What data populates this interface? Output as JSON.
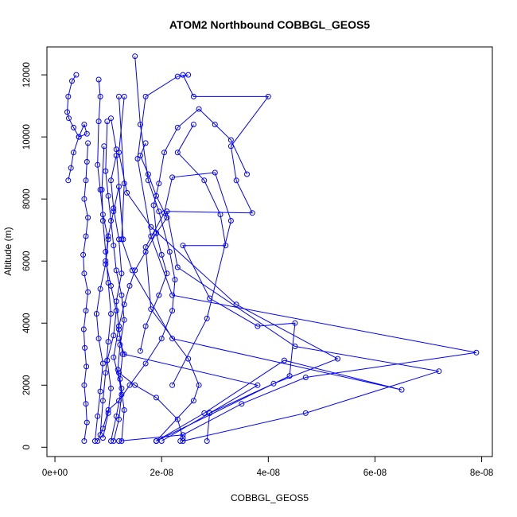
{
  "chart_data": {
    "type": "scatter",
    "title": "ATOM2 Northbound COBBGL_GEOS5",
    "xlabel": "COBBGL_GEOS5",
    "ylabel": "Altitude (m)",
    "xlim": [
      -1.5e-09,
      8.2e-08
    ],
    "ylim": [
      -300,
      12900
    ],
    "x_ticks": [
      0,
      2e-08,
      4e-08,
      6e-08,
      8e-08
    ],
    "x_tick_labels": [
      "0e+00",
      "2e-08",
      "4e-08",
      "6e-08",
      "8e-08"
    ],
    "y_ticks": [
      0,
      2000,
      4000,
      6000,
      8000,
      10000,
      12000
    ],
    "y_tick_labels": [
      "0",
      "2000",
      "4000",
      "6000",
      "8000",
      "10000",
      "12000"
    ],
    "series_color": "#0000ff",
    "marker": "open-circle",
    "connected": true,
    "profiles": [
      {
        "x": [
          1.9e-08,
          2.8e-08,
          4.3e-08,
          6.5e-08,
          2.2e-08,
          1.45e-08,
          1.25e-08,
          1.3e-08,
          1.2e-08
        ],
        "y": [
          200,
          1100,
          2800,
          1850,
          3500,
          5700,
          6700,
          8500,
          11300
        ]
      },
      {
        "x": [
          2e-08,
          2.9e-08,
          4.1e-08,
          5.3e-08,
          3.4e-08,
          1.8e-08,
          1.35e-08,
          1.2e-08,
          1.3e-08
        ],
        "y": [
          200,
          1100,
          2050,
          2850,
          4600,
          7100,
          8200,
          9500,
          11300
        ]
      },
      {
        "x": [
          1.2e-08,
          2.4e-08,
          3.5e-08,
          4.7e-08,
          7.9e-08,
          2.2e-08,
          1.8e-08,
          1.55e-08,
          1.7e-08,
          2.3e-08,
          2.5e-08
        ],
        "y": [
          200,
          400,
          1400,
          2250,
          3050,
          4900,
          6800,
          9300,
          11300,
          11950,
          12000
        ]
      },
      {
        "x": [
          2.4e-08,
          4.7e-08,
          7.2e-08,
          4.5e-08,
          2.3e-08,
          2.1e-08,
          3.7e-08,
          3.4e-08,
          3.3e-08,
          4e-08,
          2.6e-08,
          2.4e-08
        ],
        "y": [
          200,
          1100,
          2450,
          3250,
          5800,
          7600,
          7550,
          8600,
          9700,
          11300,
          11300,
          12000
        ]
      },
      {
        "x": [
          1.9e-08,
          4.4e-08,
          4.5e-08,
          3.8e-08,
          2.9e-08,
          2.4e-08,
          3.2e-08,
          3.1e-08,
          2.8e-08,
          2.3e-08,
          2.6e-08
        ],
        "y": [
          200,
          2300,
          4000,
          3900,
          4800,
          6500,
          6500,
          7500,
          8600,
          9500,
          10400
        ]
      },
      {
        "x": [
          1.9e-08,
          2.6e-08,
          2.7e-08,
          2.5e-08,
          1.8e-08,
          1.7e-08,
          2.05e-08,
          2.2e-08,
          3e-08,
          3.3e-08,
          2.85e-08,
          2.2e-08
        ],
        "y": [
          200,
          1500,
          2000,
          2850,
          4450,
          6450,
          7550,
          8700,
          8850,
          7300,
          4150,
          2000
        ]
      },
      {
        "x": [
          1.05e-08,
          1.15e-08,
          1.25e-08,
          1.1e-08,
          1.2e-08,
          1.3e-08,
          1.4e-08,
          1.5e-08,
          1.7e-08,
          1.9e-08,
          2.1e-08,
          1.9e-08,
          1.75e-08,
          1.6e-08,
          1.7e-08
        ],
        "y": [
          200,
          1000,
          1900,
          2900,
          3900,
          4600,
          5200,
          5700,
          6300,
          6900,
          7400,
          8100,
          8800,
          9400,
          9800
        ]
      },
      {
        "x": [
          8e-09,
          9e-09,
          1e-08,
          1.2e-08,
          1.4e-08,
          1.7e-08,
          2e-08,
          2.2e-08,
          2.25e-08,
          2.15e-08,
          1.95e-08,
          1.75e-08,
          1.6e-08,
          1.5e-08
        ],
        "y": [
          200,
          600,
          1200,
          1500,
          2000,
          2700,
          3500,
          4400,
          5400,
          6300,
          7600,
          8600,
          10400,
          12600
        ]
      },
      {
        "x": [
          1.6e-08,
          1.7e-08,
          1.95e-08,
          2.1e-08,
          2e-08,
          1.9e-08,
          1.85e-08,
          1.95e-08,
          2.05e-08,
          2.3e-08,
          2.7e-08,
          3e-08,
          3.3e-08,
          3.6e-08
        ],
        "y": [
          3100,
          3900,
          4900,
          5600,
          6200,
          6900,
          7800,
          8500,
          9500,
          10300,
          10900,
          10400,
          9900,
          8800
        ]
      },
      {
        "x": [
          5.5e-09,
          6e-09,
          5.8e-09,
          5.5e-09,
          5.9e-09,
          5.6e-09,
          5.4e-09,
          5.8e-09,
          6.2e-09,
          5.5e-09,
          5.3e-09,
          5.8e-09,
          6.2e-09,
          5.5e-09,
          5.8e-09,
          6e-09,
          6.2e-09
        ],
        "y": [
          200,
          800,
          1400,
          2000,
          2600,
          3200,
          3800,
          4400,
          5000,
          5600,
          6200,
          6800,
          7400,
          8000,
          8600,
          9200,
          9800
        ]
      },
      {
        "x": [
          2.5e-09,
          3e-09,
          3.5e-09,
          4.5e-09,
          5.5e-09,
          6e-09,
          4.5e-09,
          3.5e-09,
          2.6e-09,
          2.3e-09,
          2.5e-09,
          3.2e-09,
          4e-09
        ],
        "y": [
          8600,
          9000,
          9500,
          10000,
          10400,
          10100,
          10000,
          10300,
          10600,
          10800,
          11300,
          11800,
          12000
        ]
      },
      {
        "x": [
          7.5e-09,
          8e-09,
          8.5e-09,
          9e-09,
          8.2e-09,
          7.8e-09,
          8.5e-09,
          9.5e-09,
          1e-08,
          9e-09,
          8.5e-09,
          8e-09,
          8.2e-09,
          8.5e-09,
          8.2e-09
        ],
        "y": [
          200,
          1000,
          1800,
          2700,
          3500,
          4300,
          5100,
          5900,
          6700,
          7500,
          8300,
          9100,
          10500,
          11300,
          11850
        ]
      },
      {
        "x": [
          1.1e-08,
          1.2e-08,
          1.25e-08,
          1.18e-08,
          1.22e-08,
          1.3e-08,
          1.25e-08,
          1.15e-08,
          1.1e-08,
          1.05e-08,
          1e-08,
          9.5e-09,
          9.8e-09
        ],
        "y": [
          200,
          900,
          1700,
          2500,
          3300,
          4100,
          4900,
          5700,
          6500,
          7300,
          8100,
          8900,
          10500
        ]
      },
      {
        "x": [
          9e-09,
          1e-08,
          1.05e-08,
          9.8e-09,
          1.1e-08,
          1.15e-08,
          1.05e-08,
          9.5e-09,
          1e-08,
          1.1e-08,
          1.2e-08,
          1.28e-08,
          1.15e-08,
          1.05e-08
        ],
        "y": [
          300,
          1100,
          1900,
          2800,
          3600,
          4400,
          5200,
          6000,
          6800,
          7600,
          8400,
          6700,
          9600,
          10600
        ]
      },
      {
        "x": [
          1.25e-08,
          1.3e-08,
          1.22e-08,
          1.27e-08,
          1.2e-08,
          1.15e-08,
          1.25e-08,
          1.2e-08,
          1.1e-08,
          1.05e-08,
          1.15e-08
        ],
        "y": [
          200,
          1200,
          2200,
          3000,
          3800,
          4700,
          5600,
          6700,
          7700,
          8600,
          9400
        ]
      },
      {
        "x": [
          8.5e-09,
          9e-09,
          9.5e-09,
          1e-08,
          1.05e-08,
          1e-08,
          9.5e-09,
          9e-09,
          8.8e-09,
          9.2e-09
        ],
        "y": [
          400,
          1500,
          2400,
          3400,
          4300,
          5300,
          6300,
          7300,
          8300,
          9700
        ]
      },
      {
        "x": [
          2.35e-08,
          2.4e-08,
          2.3e-08,
          1.9e-08,
          1.5e-08,
          1.2e-08
        ],
        "y": [
          200,
          300,
          900,
          1600,
          2000,
          2400
        ]
      },
      {
        "x": [
          2.85e-08,
          2.9e-08,
          3.8e-08,
          1.3e-08,
          1.2e-08
        ],
        "y": [
          200,
          1100,
          2000,
          3000,
          3500
        ]
      }
    ]
  }
}
